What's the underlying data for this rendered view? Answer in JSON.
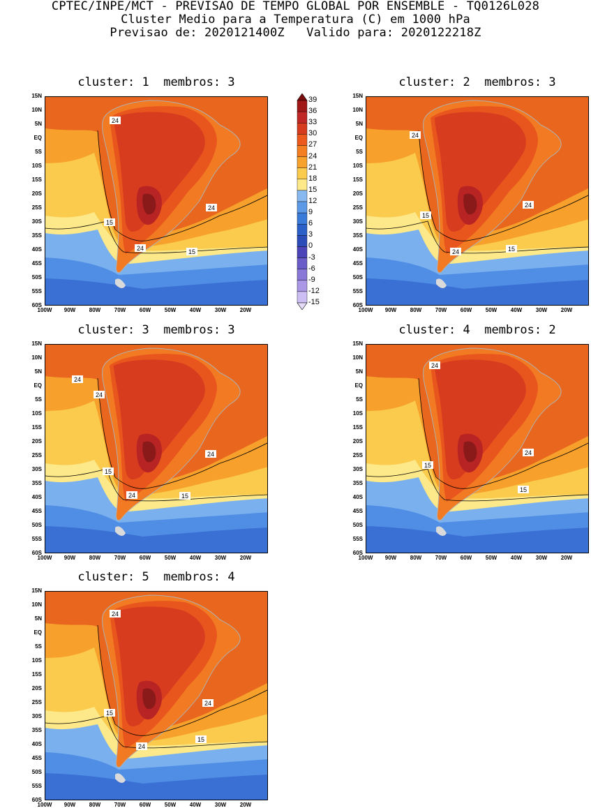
{
  "header": {
    "line1": "CPTEC/INPE/MCT - PREVISAO DE TEMPO GLOBAL POR ENSEMBLE - TQ0126L028",
    "line2": "Cluster Medio para a Temperatura (C) em 1000 hPa",
    "line3": "Previsao de: 2020121400Z   Valido para: 2020122218Z"
  },
  "panels": [
    {
      "title": "cluster: 1  membros: 3",
      "contour_labels": [
        "24",
        "24",
        "15",
        "24",
        "15"
      ]
    },
    {
      "title": "cluster: 2  membros: 3",
      "contour_labels": [
        "24",
        "15",
        "24",
        "24",
        "15"
      ]
    },
    {
      "title": "cluster: 3  membros: 3",
      "contour_labels": [
        "24",
        "24",
        "24",
        "15",
        "24",
        "15"
      ]
    },
    {
      "title": "cluster: 4  membros: 2",
      "contour_labels": [
        "24",
        "15",
        "24",
        "15"
      ]
    },
    {
      "title": "cluster: 5  membros: 4",
      "contour_labels": [
        "24",
        "24",
        "15",
        "24",
        "15"
      ]
    }
  ],
  "axes": {
    "lat_labels": [
      "15N",
      "10N",
      "5N",
      "EQ",
      "5S",
      "10S",
      "15S",
      "20S",
      "25S",
      "30S",
      "35S",
      "40S",
      "45S",
      "50S",
      "55S",
      "60S"
    ],
    "lon_labels": [
      "100W",
      "90W",
      "80W",
      "70W",
      "60W",
      "50W",
      "40W",
      "30W",
      "20W"
    ]
  },
  "colorbar": {
    "labels": [
      "39",
      "36",
      "33",
      "30",
      "27",
      "24",
      "21",
      "18",
      "15",
      "12",
      "9",
      "6",
      "3",
      "0",
      "-3",
      "-6",
      "-9",
      "-12",
      "-15"
    ],
    "colors": [
      "#7a0c0c",
      "#a01818",
      "#c02828",
      "#d83c1e",
      "#ec5a1e",
      "#f47e22",
      "#f8a22e",
      "#fbcb4e",
      "#fde98a",
      "#88b8f0",
      "#5c9ae8",
      "#3a7ad8",
      "#2a60c8",
      "#2a4cb8",
      "#4a44b8",
      "#6a5cc8",
      "#8a78d8",
      "#aa98e6",
      "#ccbef2",
      "#e6dcfa"
    ]
  }
}
